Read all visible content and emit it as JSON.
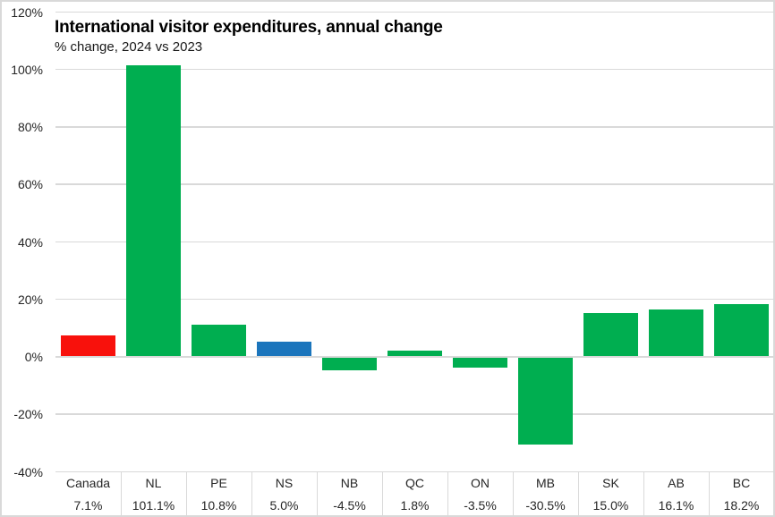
{
  "chart_data": {
    "type": "bar",
    "title": "International visitor expenditures, annual change",
    "subtitle": "% change, 2024 vs 2023",
    "categories": [
      "Canada",
      "NL",
      "PE",
      "NS",
      "NB",
      "QC",
      "ON",
      "MB",
      "SK",
      "AB",
      "BC"
    ],
    "values": [
      7.1,
      101.1,
      10.8,
      5.0,
      -4.5,
      1.8,
      -3.5,
      -30.5,
      15.0,
      16.1,
      18.2
    ],
    "value_labels": [
      "7.1%",
      "101.1%",
      "10.8%",
      "5.0%",
      "-4.5%",
      "1.8%",
      "-3.5%",
      "-30.5%",
      "15.0%",
      "16.1%",
      "18.2%"
    ],
    "bar_colors": [
      "#f8110c",
      "#00ae50",
      "#00ae50",
      "#1b75bc",
      "#00ae50",
      "#00ae50",
      "#00ae50",
      "#00ae50",
      "#00ae50",
      "#00ae50",
      "#00ae50"
    ],
    "colors": {
      "default_green": "#00ae50",
      "canada_red": "#f8110c",
      "ns_blue": "#1b75bc",
      "gridline": "#d9d9d9",
      "text": "#262626"
    },
    "y_ticks": [
      120,
      100,
      80,
      60,
      40,
      20,
      0,
      -20,
      -40
    ],
    "y_tick_labels": [
      "120%",
      "100%",
      "80%",
      "60%",
      "40%",
      "20%",
      "0%",
      "-20%",
      "-40%"
    ],
    "ylim": [
      -40,
      120
    ],
    "grid": true,
    "legend_position": "none",
    "data_table_shown": true
  }
}
